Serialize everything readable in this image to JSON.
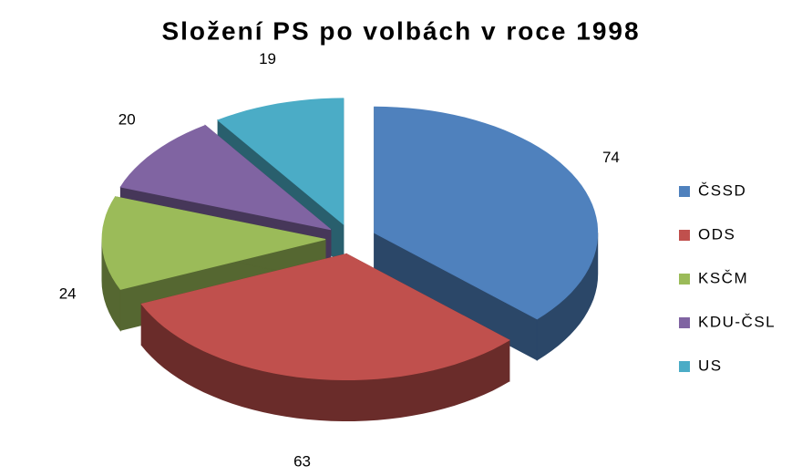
{
  "chart_data": {
    "type": "pie3d",
    "title": "Složení PS po volbách v roce 1998",
    "categories": [
      "ČSSD",
      "ODS",
      "KSČM",
      "KDU-ČSL",
      "US"
    ],
    "values": [
      74,
      63,
      24,
      20,
      19
    ],
    "colors": [
      "#4f81bd",
      "#c0504d",
      "#9bbb59",
      "#8064a2",
      "#4bacc6"
    ],
    "legend": "right"
  }
}
